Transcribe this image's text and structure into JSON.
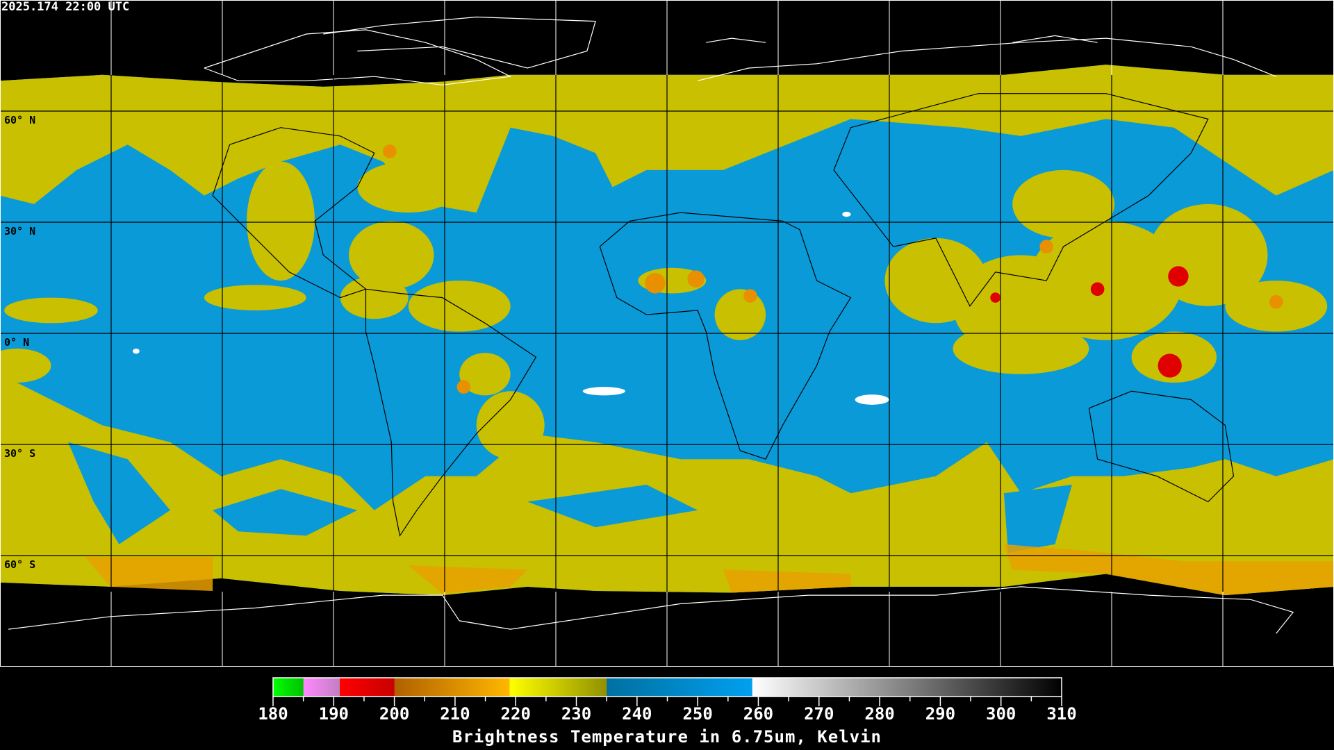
{
  "header": {
    "timestamp": "2025.174 22:00 UTC"
  },
  "map": {
    "lat_labels": [
      "60° N",
      "30° N",
      "0° N",
      "30° S",
      "60° S"
    ],
    "grid_lon_step_deg": 30,
    "grid_lat_step_deg": 30,
    "colors": {
      "blue": "#0a9ad8",
      "yellow": "#c8c000",
      "orange": "#e8a000",
      "red": "#e00000",
      "background": "#000000"
    }
  },
  "colorbar": {
    "title": "Brightness Temperature in 6.75um, Kelvin",
    "min": 180,
    "max": 310,
    "tick_labels": [
      "180",
      "190",
      "200",
      "210",
      "220",
      "230",
      "240",
      "250",
      "260",
      "270",
      "280",
      "290",
      "300",
      "310"
    ],
    "segments": [
      {
        "from": 180,
        "to": 185,
        "start": "#00ff00",
        "end": "#00c000"
      },
      {
        "from": 185,
        "to": 191,
        "start": "#ff88ff",
        "end": "#c080c0"
      },
      {
        "from": 191,
        "to": 200,
        "start": "#ff0000",
        "end": "#c80000"
      },
      {
        "from": 200,
        "to": 219,
        "start": "#b06000",
        "end": "#ffb800"
      },
      {
        "from": 219,
        "to": 235,
        "start": "#ffff00",
        "end": "#909000"
      },
      {
        "from": 235,
        "to": 259,
        "start": "#0070a0",
        "end": "#00a0f0"
      },
      {
        "from": 259,
        "to": 310,
        "start": "#ffffff",
        "end": "#000000"
      }
    ]
  }
}
